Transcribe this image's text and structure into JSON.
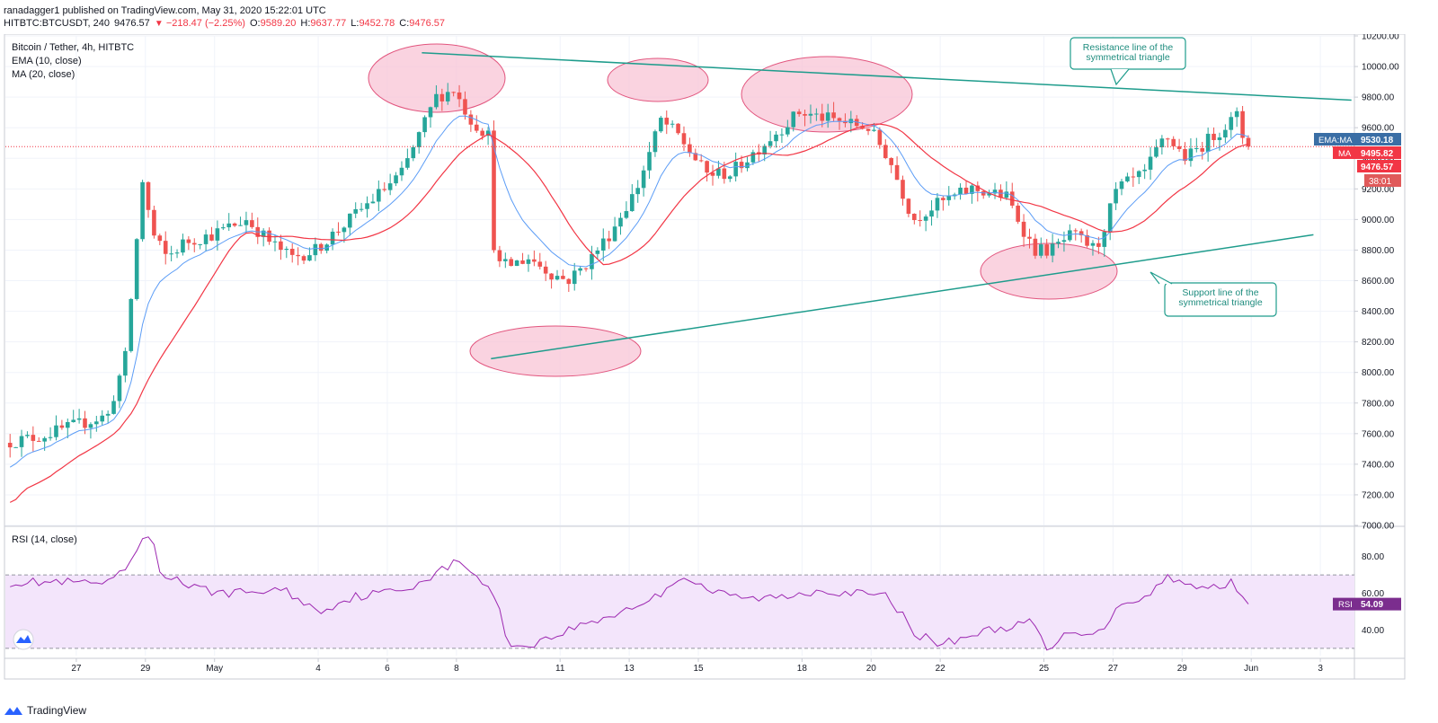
{
  "header": {
    "published_line": "ranadagger1 published on TradingView.com, May 31, 2020 15:22:01 UTC",
    "symbol": "HITBTC:BTCUSDT, 240",
    "last": "9476.57",
    "change": "−218.47 (−2.25%)",
    "o_label": "O:",
    "o_value": "9589.20",
    "h_label": "H:",
    "h_value": "9637.77",
    "l_label": "L:",
    "l_value": "9452.78",
    "c_label": "C:",
    "c_value": "9476.57"
  },
  "legend": {
    "title": "Bitcoin / Tether, 4h, HITBTC",
    "ema": "EMA (10, close)",
    "ma": "MA (20, close)",
    "rsi": "RSI (14, close)"
  },
  "annotations": {
    "resistance": [
      "Resistance line of the",
      "symmetrical triangle"
    ],
    "support": [
      "Support line of the",
      "symmetrical triangle"
    ]
  },
  "price_tags": {
    "ema_label": "EMA:MA",
    "ema_value": "9530.18",
    "ma_label": "MA",
    "ma_value": "9495.82",
    "last_value": "9476.57",
    "countdown": "38:01",
    "rsi_label": "RSI",
    "rsi_value": "54.09"
  },
  "footer": {
    "brand": "TradingView"
  },
  "colors": {
    "up": "#26a69a",
    "down": "#ef5350",
    "ema": "#5b9cf6",
    "ma": "#f23645",
    "trend": "#1e9c8c",
    "ellipse_fill": "#f8c4d6",
    "ellipse_stroke": "#e2557e",
    "rsi": "#9c27b0",
    "rsi_band": "#f3e5fb",
    "grid": "#f0f3fa"
  },
  "chart_data": [
    {
      "type": "candlestick",
      "title": "Bitcoin / Tether, 4h, HITBTC",
      "ylim": [
        7000,
        10200
      ],
      "y_ticks": [
        10200,
        10000,
        9800,
        9600,
        9400,
        9200,
        9000,
        8800,
        8600,
        8400,
        8200,
        8000,
        7800,
        7600,
        7400,
        7200,
        7000
      ],
      "y_tick_labels": [
        "10200.00",
        "10000.00",
        "9800.00",
        "9600.00",
        "9400.00",
        "9200.00",
        "9000.00",
        "8800.00",
        "8600.00",
        "8400.00",
        "8200.00",
        "8000.00",
        "7800.00",
        "7600.00",
        "7400.00",
        "7200.00",
        "7000.00"
      ],
      "x_ticks": [
        {
          "label": "27",
          "day": 2
        },
        {
          "label": "29",
          "day": 4
        },
        {
          "label": "May",
          "day": 6
        },
        {
          "label": "4",
          "day": 9
        },
        {
          "label": "6",
          "day": 11
        },
        {
          "label": "8",
          "day": 13
        },
        {
          "label": "11",
          "day": 16
        },
        {
          "label": "13",
          "day": 18
        },
        {
          "label": "15",
          "day": 20
        },
        {
          "label": "18",
          "day": 23
        },
        {
          "label": "20",
          "day": 25
        },
        {
          "label": "22",
          "day": 27
        },
        {
          "label": "25",
          "day": 30
        },
        {
          "label": "27",
          "day": 32
        },
        {
          "label": "29",
          "day": 34
        },
        {
          "label": "Jun",
          "day": 36
        },
        {
          "label": "3",
          "day": 38
        }
      ],
      "price_anchors": [
        [
          0,
          7540
        ],
        [
          1,
          7580
        ],
        [
          2,
          7650
        ],
        [
          3,
          7720
        ],
        [
          3.5,
          8100
        ],
        [
          4,
          9250
        ],
        [
          4.3,
          8900
        ],
        [
          4.7,
          8750
        ],
        [
          5.2,
          8850
        ],
        [
          6,
          8900
        ],
        [
          7,
          9000
        ],
        [
          7.7,
          8850
        ],
        [
          8.3,
          8750
        ],
        [
          9,
          8800
        ],
        [
          10,
          9000
        ],
        [
          11.5,
          9300
        ],
        [
          12.5,
          9800
        ],
        [
          13,
          9850
        ],
        [
          13.5,
          9650
        ],
        [
          14,
          9550
        ],
        [
          14.2,
          8700
        ],
        [
          14.6,
          8700
        ],
        [
          15.2,
          8750
        ],
        [
          15.8,
          8650
        ],
        [
          16.3,
          8600
        ],
        [
          16.8,
          8700
        ],
        [
          17.5,
          8900
        ],
        [
          18.3,
          9200
        ],
        [
          19,
          9650
        ],
        [
          19.5,
          9550
        ],
        [
          20.3,
          9300
        ],
        [
          21,
          9300
        ],
        [
          22,
          9500
        ],
        [
          23,
          9700
        ],
        [
          24,
          9650
        ],
        [
          25,
          9600
        ],
        [
          25.6,
          9400
        ],
        [
          26.3,
          9000
        ],
        [
          27,
          9100
        ],
        [
          28,
          9200
        ],
        [
          29,
          9150
        ],
        [
          29.8,
          8800
        ],
        [
          30.3,
          8800
        ],
        [
          30.9,
          8900
        ],
        [
          31.6,
          8800
        ],
        [
          32.2,
          9200
        ],
        [
          33,
          9300
        ],
        [
          33.6,
          9550
        ],
        [
          34.2,
          9400
        ],
        [
          35,
          9550
        ],
        [
          35.7,
          9680
        ],
        [
          35.9,
          9476
        ]
      ],
      "ema_period": 10,
      "ma_period": 20,
      "resistance_line": {
        "from": [
          12,
          10090
        ],
        "to": [
          38.9,
          9780
        ]
      },
      "support_line": {
        "from": [
          14,
          8090
        ],
        "to": [
          37.8,
          8900
        ]
      },
      "last_price": 9476.57
    },
    {
      "type": "line",
      "title": "RSI (14, close)",
      "ylim": [
        26,
        96
      ],
      "y_ticks": [
        80,
        60,
        40
      ],
      "y_tick_labels": [
        "80.00",
        "60.00",
        "40.00"
      ],
      "band": [
        30,
        70
      ],
      "rsi_anchors": [
        [
          0,
          66
        ],
        [
          1.5,
          66
        ],
        [
          3,
          65
        ],
        [
          3.5,
          75
        ],
        [
          4,
          90
        ],
        [
          4.2,
          92
        ],
        [
          4.4,
          72
        ],
        [
          5.5,
          62
        ],
        [
          6.5,
          60
        ],
        [
          8,
          62
        ],
        [
          9,
          50
        ],
        [
          10,
          58
        ],
        [
          11.5,
          62
        ],
        [
          12.5,
          72
        ],
        [
          13,
          77
        ],
        [
          13.5,
          72
        ],
        [
          14.3,
          52
        ],
        [
          14.5,
          30
        ],
        [
          15.5,
          34
        ],
        [
          16.5,
          42
        ],
        [
          17.5,
          48
        ],
        [
          18.8,
          58
        ],
        [
          19.5,
          70
        ],
        [
          20.5,
          60
        ],
        [
          21.5,
          57
        ],
        [
          22.5,
          58
        ],
        [
          23.5,
          62
        ],
        [
          24.5,
          60
        ],
        [
          25.5,
          58
        ],
        [
          26.3,
          38
        ],
        [
          27,
          32
        ],
        [
          28,
          38
        ],
        [
          29,
          42
        ],
        [
          29.7,
          44
        ],
        [
          30.1,
          28
        ],
        [
          30.8,
          40
        ],
        [
          31.6,
          38
        ],
        [
          32.2,
          55
        ],
        [
          33,
          58
        ],
        [
          33.6,
          70
        ],
        [
          34.4,
          62
        ],
        [
          35.5,
          66
        ],
        [
          35.9,
          54
        ]
      ],
      "last_value": 54.09
    }
  ]
}
